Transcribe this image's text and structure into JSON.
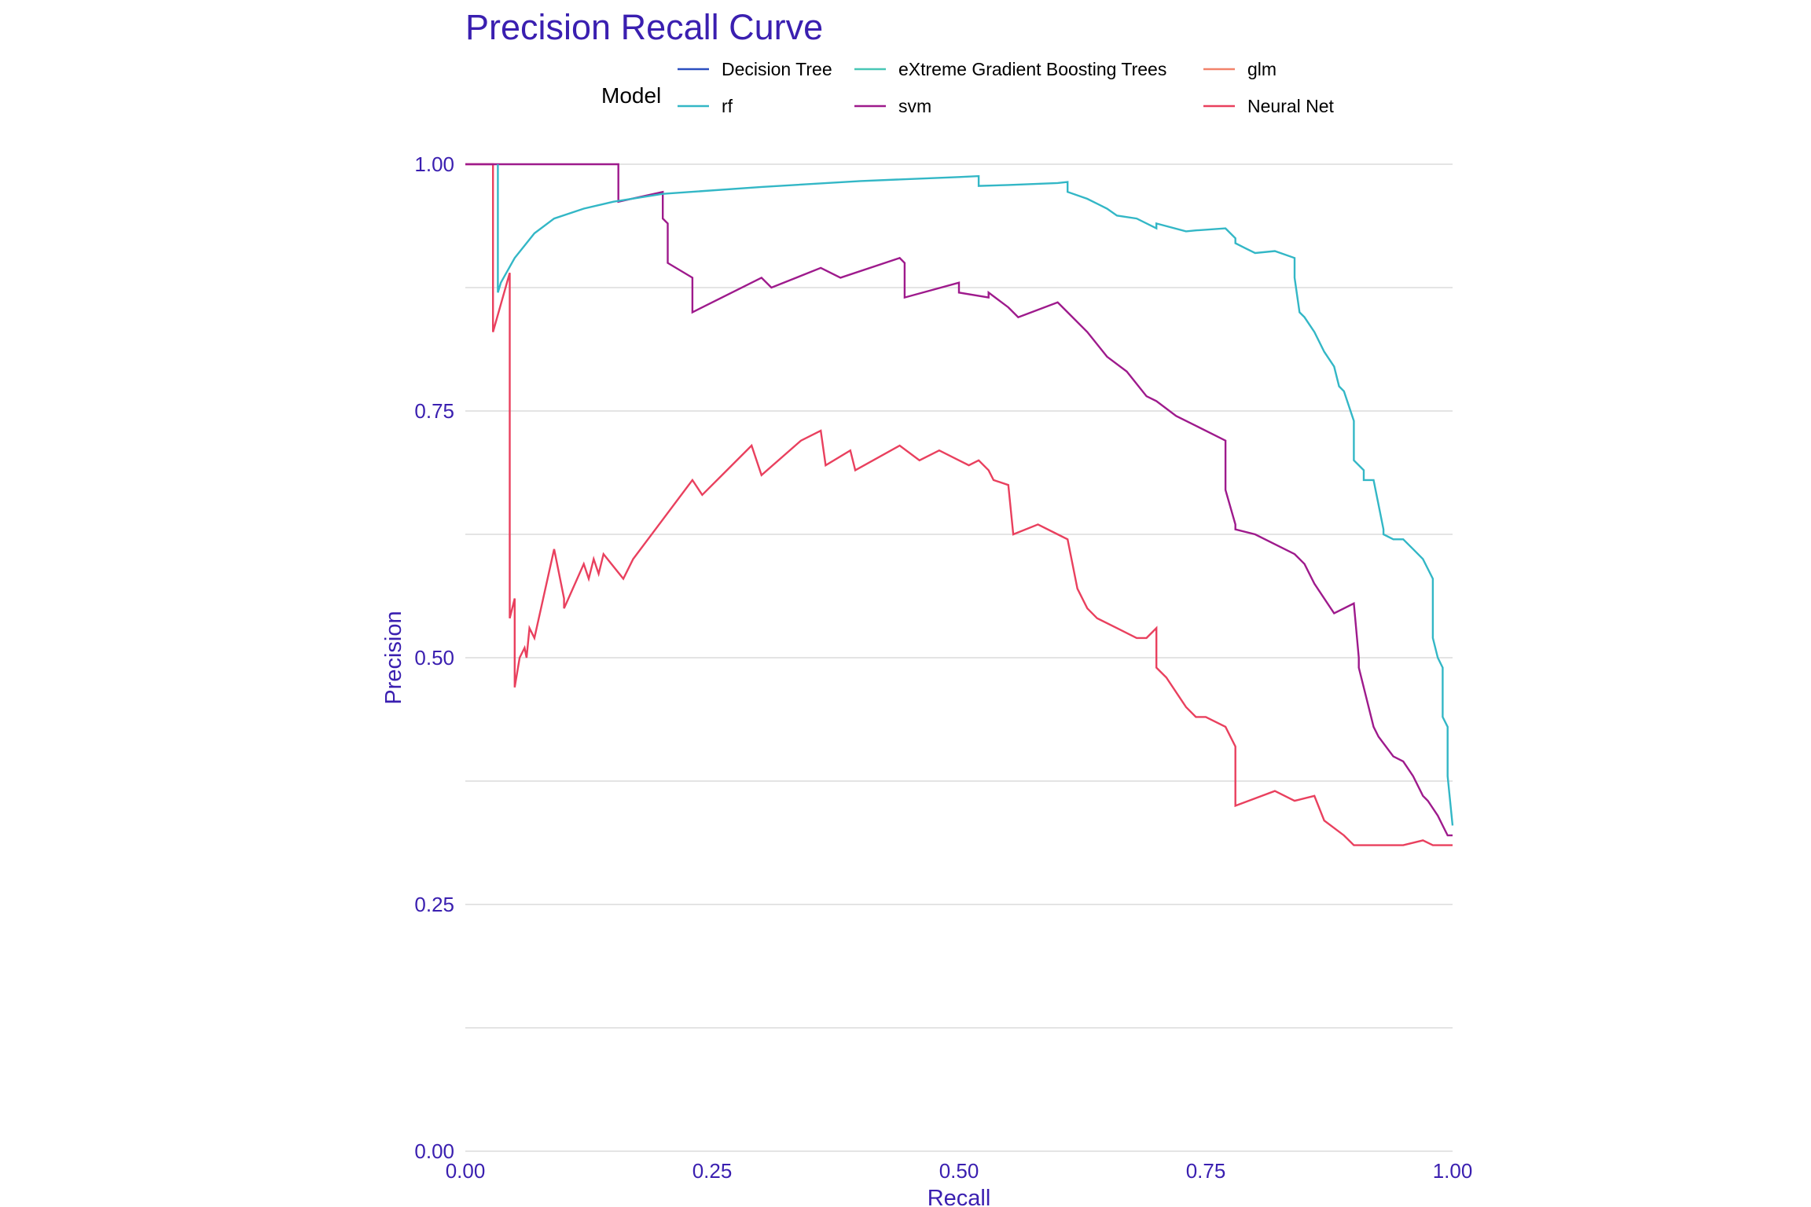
{
  "chart_data": {
    "type": "line",
    "title": "Precision Recall Curve",
    "xlabel": "Recall",
    "ylabel": "Precision",
    "xlim": [
      0,
      1
    ],
    "ylim": [
      0,
      1
    ],
    "x_ticks": [
      "0.00",
      "0.25",
      "0.50",
      "0.75",
      "1.00"
    ],
    "y_ticks": [
      "0.00",
      "0.25",
      "0.50",
      "0.75",
      "1.00"
    ],
    "x_tick_values": [
      0,
      0.25,
      0.5,
      0.75,
      1.0
    ],
    "y_tick_values": [
      0,
      0.25,
      0.5,
      0.75,
      1.0
    ],
    "grid": true,
    "legend": {
      "title": "Model",
      "position": "top"
    },
    "colors": {
      "title": "#3a1fb0",
      "axis_text": "#3a1fb0",
      "grid": "#dcdcdc"
    },
    "series": [
      {
        "name": "Decision Tree",
        "color": "#2b4fbf",
        "x": [],
        "y": []
      },
      {
        "name": "rf",
        "color": "#33b7c6",
        "x": [
          0.033,
          0.033,
          0.036,
          0.05,
          0.07,
          0.09,
          0.12,
          0.15,
          0.2,
          0.3,
          0.4,
          0.5,
          0.52,
          0.52,
          0.55,
          0.6,
          0.61,
          0.61,
          0.63,
          0.65,
          0.66,
          0.68,
          0.7,
          0.7,
          0.73,
          0.74,
          0.77,
          0.78,
          0.78,
          0.79,
          0.8,
          0.82,
          0.84,
          0.84,
          0.845,
          0.85,
          0.86,
          0.87,
          0.88,
          0.885,
          0.89,
          0.9,
          0.9,
          0.91,
          0.91,
          0.92,
          0.93,
          0.93,
          0.94,
          0.95,
          0.96,
          0.97,
          0.98,
          0.98,
          0.985,
          0.99,
          0.99,
          0.995,
          0.995,
          1.0
        ],
        "y": [
          1.0,
          0.87,
          0.88,
          0.905,
          0.93,
          0.945,
          0.955,
          0.962,
          0.97,
          0.977,
          0.983,
          0.987,
          0.988,
          0.978,
          0.979,
          0.981,
          0.982,
          0.972,
          0.965,
          0.955,
          0.948,
          0.945,
          0.935,
          0.94,
          0.932,
          0.933,
          0.935,
          0.925,
          0.92,
          0.915,
          0.91,
          0.912,
          0.905,
          0.885,
          0.85,
          0.845,
          0.83,
          0.81,
          0.795,
          0.775,
          0.77,
          0.74,
          0.7,
          0.69,
          0.68,
          0.68,
          0.63,
          0.625,
          0.62,
          0.62,
          0.61,
          0.6,
          0.58,
          0.52,
          0.5,
          0.49,
          0.44,
          0.43,
          0.38,
          0.33
        ]
      },
      {
        "name": "eXtreme Gradient Boosting Trees",
        "color": "#48c6b5",
        "x": [],
        "y": []
      },
      {
        "name": "svm",
        "color": "#9e1a8c",
        "x": [
          0.0,
          0.155,
          0.155,
          0.2,
          0.2,
          0.205,
          0.205,
          0.23,
          0.23,
          0.3,
          0.31,
          0.36,
          0.38,
          0.44,
          0.445,
          0.445,
          0.5,
          0.5,
          0.53,
          0.53,
          0.55,
          0.56,
          0.6,
          0.61,
          0.63,
          0.65,
          0.67,
          0.69,
          0.7,
          0.72,
          0.74,
          0.76,
          0.77,
          0.77,
          0.78,
          0.78,
          0.8,
          0.84,
          0.85,
          0.86,
          0.88,
          0.9,
          0.905,
          0.905,
          0.92,
          0.925,
          0.94,
          0.95,
          0.96,
          0.97,
          0.975,
          0.985,
          0.99,
          0.995,
          1.0,
          1.0
        ],
        "y": [
          1.0,
          1.0,
          0.962,
          0.972,
          0.945,
          0.94,
          0.9,
          0.885,
          0.85,
          0.885,
          0.875,
          0.895,
          0.885,
          0.905,
          0.9,
          0.865,
          0.88,
          0.87,
          0.865,
          0.87,
          0.855,
          0.845,
          0.86,
          0.85,
          0.83,
          0.805,
          0.79,
          0.765,
          0.76,
          0.745,
          0.735,
          0.725,
          0.72,
          0.67,
          0.635,
          0.63,
          0.625,
          0.605,
          0.595,
          0.575,
          0.545,
          0.555,
          0.5,
          0.49,
          0.43,
          0.42,
          0.4,
          0.395,
          0.38,
          0.36,
          0.355,
          0.34,
          0.33,
          0.32,
          0.32,
          0.32
        ]
      },
      {
        "name": "glm",
        "color": "#f2836b",
        "x": [],
        "y": []
      },
      {
        "name": "Neural Net",
        "color": "#e9405e",
        "x": [
          0.0,
          0.028,
          0.028,
          0.045,
          0.045,
          0.05,
          0.05,
          0.055,
          0.06,
          0.062,
          0.065,
          0.07,
          0.09,
          0.1,
          0.1,
          0.12,
          0.125,
          0.13,
          0.135,
          0.14,
          0.16,
          0.17,
          0.2,
          0.23,
          0.24,
          0.26,
          0.29,
          0.3,
          0.34,
          0.36,
          0.365,
          0.39,
          0.395,
          0.44,
          0.46,
          0.48,
          0.5,
          0.51,
          0.52,
          0.53,
          0.535,
          0.55,
          0.555,
          0.58,
          0.6,
          0.61,
          0.62,
          0.63,
          0.64,
          0.66,
          0.68,
          0.69,
          0.7,
          0.7,
          0.71,
          0.73,
          0.74,
          0.75,
          0.77,
          0.78,
          0.78,
          0.82,
          0.84,
          0.86,
          0.87,
          0.89,
          0.9,
          0.91,
          0.95,
          0.97,
          0.98,
          0.99,
          1.0
        ],
        "y": [
          1.0,
          1.0,
          0.83,
          0.89,
          0.54,
          0.56,
          0.47,
          0.5,
          0.51,
          0.5,
          0.53,
          0.52,
          0.61,
          0.56,
          0.55,
          0.595,
          0.58,
          0.6,
          0.585,
          0.605,
          0.58,
          0.6,
          0.64,
          0.68,
          0.665,
          0.685,
          0.715,
          0.685,
          0.72,
          0.73,
          0.695,
          0.71,
          0.69,
          0.715,
          0.7,
          0.71,
          0.7,
          0.695,
          0.7,
          0.69,
          0.68,
          0.675,
          0.625,
          0.635,
          0.625,
          0.62,
          0.57,
          0.55,
          0.54,
          0.53,
          0.52,
          0.52,
          0.53,
          0.49,
          0.48,
          0.45,
          0.44,
          0.44,
          0.43,
          0.41,
          0.35,
          0.365,
          0.355,
          0.36,
          0.335,
          0.32,
          0.31,
          0.31,
          0.31,
          0.315,
          0.31,
          0.31,
          0.31
        ]
      }
    ]
  }
}
